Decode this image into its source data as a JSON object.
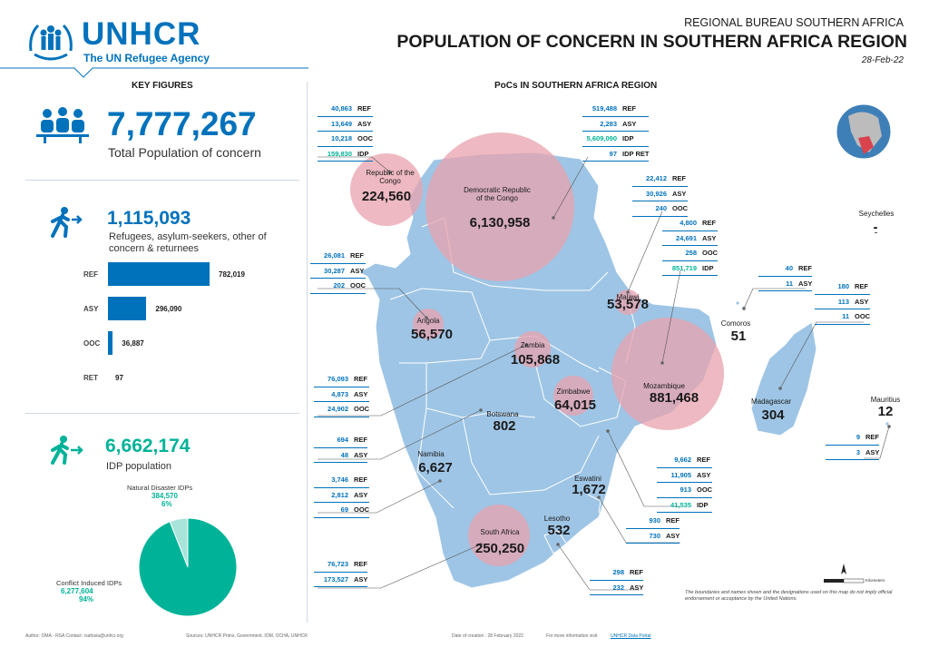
{
  "header": {
    "org_name": "UNHCR",
    "org_tagline": "The UN Refugee Agency",
    "bureau": "REGIONAL BUREAU SOUTHERN AFRICA",
    "title": "POPULATION OF CONCERN IN SOUTHERN AFRICA REGION",
    "date": "28-Feb-22"
  },
  "key_figures": {
    "heading": "KEY FIGURES",
    "total_value": "7,777,267",
    "total_label": "Total Population of concern",
    "refugees_value": "1,115,093",
    "refugees_label_1": "Refugees, asylum-seekers, other of",
    "refugees_label_2": "concern & returnees",
    "bars": [
      {
        "label": "REF",
        "value": 782019,
        "display": "782,019"
      },
      {
        "label": "ASY",
        "value": 296090,
        "display": "296,090"
      },
      {
        "label": "OOC",
        "value": 36887,
        "display": "36,887"
      },
      {
        "label": "RET",
        "value": 97,
        "display": "97"
      }
    ],
    "idp_value": "6,662,174",
    "idp_label": "IDP population",
    "pie": {
      "natural_label": "Natural Disaster IDPs",
      "natural_value": "384,570",
      "natural_pct": "6%",
      "natural_share": 0.06,
      "conflict_label": "Conflict Induced IDPs",
      "conflict_value": "6,277,604",
      "conflict_pct": "94%",
      "conflict_share": 0.94,
      "colors": {
        "conflict": "#00B398",
        "natural": "#a8e4da"
      }
    }
  },
  "map": {
    "heading": "PoCs IN SOUTHERN AFRICA REGION",
    "land_color": "#9ec5e5",
    "bubble_color": "#e8a2ad",
    "countries": [
      {
        "name": "Republic of the Congo",
        "value": "224,560"
      },
      {
        "name": "Democratic Republic of the Congo",
        "value": "6,130,958"
      },
      {
        "name": "Malawi",
        "value": "53,578"
      },
      {
        "name": "Angola",
        "value": "56,570"
      },
      {
        "name": "Zambia",
        "value": "105,868"
      },
      {
        "name": "Mozambique",
        "value": "881,468"
      },
      {
        "name": "Zimbabwe",
        "value": "64,015"
      },
      {
        "name": "Botswana",
        "value": "802"
      },
      {
        "name": "Namibia",
        "value": "6,627"
      },
      {
        "name": "Eswatini",
        "value": "1,672"
      },
      {
        "name": "Lesotho",
        "value": "532"
      },
      {
        "name": "South Africa",
        "value": "250,250"
      },
      {
        "name": "Comoros",
        "value": "51"
      },
      {
        "name": "Madagascar",
        "value": "304"
      },
      {
        "name": "Mauritius",
        "value": "12"
      },
      {
        "name": "Seychelles",
        "value": "-"
      }
    ],
    "stats": {
      "congo": [
        {
          "n": "40,863",
          "c": "REF"
        },
        {
          "n": "13,649",
          "c": "ASY"
        },
        {
          "n": "10,218",
          "c": "OOC"
        },
        {
          "n": "159,830",
          "c": "IDP",
          "g": true
        }
      ],
      "drc": [
        {
          "n": "519,488",
          "c": "REF"
        },
        {
          "n": "2,283",
          "c": "ASY"
        },
        {
          "n": "5,609,090",
          "c": "IDP",
          "g": true
        },
        {
          "n": "97",
          "c": "IDP RET"
        }
      ],
      "malawi": [
        {
          "n": "22,412",
          "c": "REF"
        },
        {
          "n": "30,926",
          "c": "ASY"
        },
        {
          "n": "240",
          "c": "OOC"
        }
      ],
      "mozambique": [
        {
          "n": "4,800",
          "c": "REF"
        },
        {
          "n": "24,691",
          "c": "ASY"
        },
        {
          "n": "258",
          "c": "OOC"
        },
        {
          "n": "851,719",
          "c": "IDP",
          "g": true
        }
      ],
      "angola": [
        {
          "n": "26,081",
          "c": "REF"
        },
        {
          "n": "30,287",
          "c": "ASY"
        },
        {
          "n": "202",
          "c": "OOC"
        }
      ],
      "zambia": [
        {
          "n": "76,093",
          "c": "REF"
        },
        {
          "n": "4,873",
          "c": "ASY"
        },
        {
          "n": "24,902",
          "c": "OOC"
        }
      ],
      "botswana": [
        {
          "n": "694",
          "c": "REF"
        },
        {
          "n": "48",
          "c": "ASY"
        }
      ],
      "namibia": [
        {
          "n": "3,746",
          "c": "REF"
        },
        {
          "n": "2,812",
          "c": "ASY"
        },
        {
          "n": "69",
          "c": "OOC"
        }
      ],
      "zimbabwe": [
        {
          "n": "9,662",
          "c": "REF"
        },
        {
          "n": "11,905",
          "c": "ASY"
        },
        {
          "n": "913",
          "c": "OOC"
        },
        {
          "n": "41,535",
          "c": "IDP",
          "g": true
        }
      ],
      "eswatini": [
        {
          "n": "930",
          "c": "REF"
        },
        {
          "n": "730",
          "c": "ASY"
        }
      ],
      "lesotho": [
        {
          "n": "298",
          "c": "REF"
        },
        {
          "n": "232",
          "c": "ASY"
        }
      ],
      "southafrica": [
        {
          "n": "76,723",
          "c": "REF"
        },
        {
          "n": "173,527",
          "c": "ASY"
        }
      ],
      "comoros": [
        {
          "n": "40",
          "c": "REF"
        },
        {
          "n": "11",
          "c": "ASY"
        }
      ],
      "madagascar": [
        {
          "n": "180",
          "c": "REF"
        },
        {
          "n": "113",
          "c": "ASY"
        },
        {
          "n": "11",
          "c": "OOC"
        }
      ],
      "mauritius": [
        {
          "n": "9",
          "c": "REF"
        },
        {
          "n": "3",
          "c": "ASY"
        }
      ]
    },
    "disclaimer": "The boundaries and names shown and the designations used on this map do not imply official endorsement or acceptance by the United Nations.",
    "scale_label": "Kilometers"
  },
  "footer": {
    "author": "Author: OMA - RSA   Contact: rsafosia@unhcr.org",
    "sources": "Sources: UNHCR Prims, Government, IOM, OCHA, UNHCR",
    "creation": "Date of creation : 28 February 2022",
    "more_info": "For more information visit",
    "link": "UNHCR Data Portal"
  }
}
